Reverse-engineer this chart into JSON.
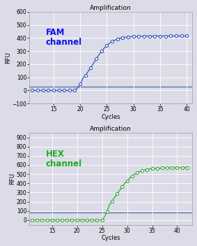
{
  "fam": {
    "title": "Amplification",
    "label": "FAM\nchannel",
    "label_color": "#1111EE",
    "line_color": "#3355BB",
    "marker_color": "#3355BB",
    "threshold": 30,
    "xlim": [
      10.5,
      41
    ],
    "ylim": [
      -100,
      600
    ],
    "xticks": [
      15,
      20,
      25,
      30,
      35,
      40
    ],
    "yticks": [
      -100,
      0,
      100,
      200,
      300,
      400,
      500,
      600
    ],
    "xlabel": "Cycles",
    "ylabel": "RFU",
    "sigmoid_midpoint": 22.5,
    "sigmoid_scale": 1.6,
    "sigmoid_max": 415,
    "x_start": 11,
    "x_end": 40,
    "baseline_end": 19
  },
  "hex": {
    "title": "Amplification",
    "label": "HEX\nchannel",
    "label_color": "#22AA22",
    "line_color": "#33AA33",
    "marker_color": "#33AA33",
    "threshold": 80,
    "xlim": [
      10.5,
      43
    ],
    "ylim": [
      -50,
      950
    ],
    "xticks": [
      15,
      20,
      25,
      30,
      35,
      40
    ],
    "yticks": [
      0,
      100,
      200,
      300,
      400,
      500,
      600,
      700,
      800,
      900
    ],
    "xlabel": "Cycles",
    "ylabel": "RFU",
    "sigmoid_midpoint": 28.0,
    "sigmoid_scale": 1.8,
    "sigmoid_max": 570,
    "x_start": 11,
    "x_end": 42,
    "baseline_end": 25
  },
  "bg_color": "#DCDCE8",
  "grid_color": "#FFFFFF",
  "title_fontsize": 6.5,
  "label_fontsize": 8.5,
  "axis_label_fontsize": 6,
  "tick_fontsize": 5.5,
  "threshold_color": "#5577AA",
  "spine_color": "#999999"
}
